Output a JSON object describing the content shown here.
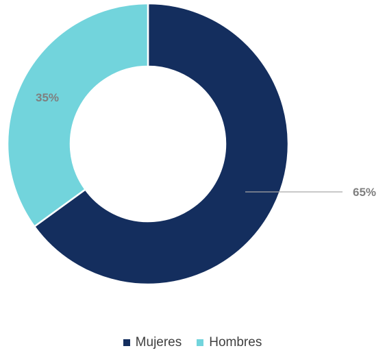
{
  "chart_data": {
    "type": "pie",
    "variant": "donut",
    "title": "",
    "series": [
      {
        "name": "Mujeres",
        "value": 65,
        "label": "65%",
        "color": "#142e5e"
      },
      {
        "name": "Hombres",
        "value": 35,
        "label": "35%",
        "color": "#72d4dc"
      }
    ],
    "legend_position": "bottom"
  },
  "legend": {
    "items": [
      {
        "label": "Mujeres",
        "color": "#142e5e"
      },
      {
        "label": "Hombres",
        "color": "#72d4dc"
      }
    ]
  }
}
